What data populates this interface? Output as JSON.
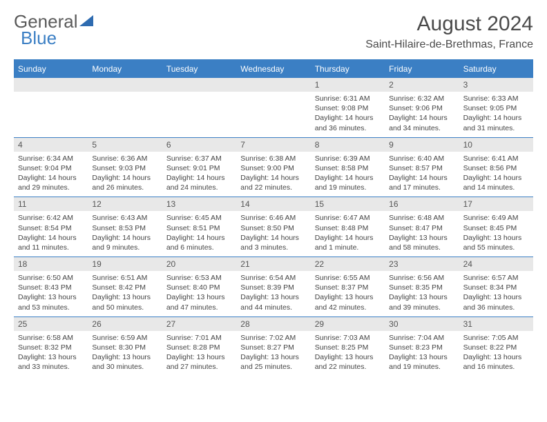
{
  "logo": {
    "text1": "General",
    "text2": "Blue"
  },
  "title": "August 2024",
  "location": "Saint-Hilaire-de-Brethmas, France",
  "colors": {
    "header_bg": "#3b7fc4",
    "header_text": "#ffffff",
    "daynum_bg": "#e8e8e8",
    "text": "#444444",
    "border": "#3b7fc4"
  },
  "day_headers": [
    "Sunday",
    "Monday",
    "Tuesday",
    "Wednesday",
    "Thursday",
    "Friday",
    "Saturday"
  ],
  "weeks": [
    [
      {
        "n": "",
        "sr": "",
        "ss": "",
        "dl": ""
      },
      {
        "n": "",
        "sr": "",
        "ss": "",
        "dl": ""
      },
      {
        "n": "",
        "sr": "",
        "ss": "",
        "dl": ""
      },
      {
        "n": "",
        "sr": "",
        "ss": "",
        "dl": ""
      },
      {
        "n": "1",
        "sr": "Sunrise: 6:31 AM",
        "ss": "Sunset: 9:08 PM",
        "dl": "Daylight: 14 hours and 36 minutes."
      },
      {
        "n": "2",
        "sr": "Sunrise: 6:32 AM",
        "ss": "Sunset: 9:06 PM",
        "dl": "Daylight: 14 hours and 34 minutes."
      },
      {
        "n": "3",
        "sr": "Sunrise: 6:33 AM",
        "ss": "Sunset: 9:05 PM",
        "dl": "Daylight: 14 hours and 31 minutes."
      }
    ],
    [
      {
        "n": "4",
        "sr": "Sunrise: 6:34 AM",
        "ss": "Sunset: 9:04 PM",
        "dl": "Daylight: 14 hours and 29 minutes."
      },
      {
        "n": "5",
        "sr": "Sunrise: 6:36 AM",
        "ss": "Sunset: 9:03 PM",
        "dl": "Daylight: 14 hours and 26 minutes."
      },
      {
        "n": "6",
        "sr": "Sunrise: 6:37 AM",
        "ss": "Sunset: 9:01 PM",
        "dl": "Daylight: 14 hours and 24 minutes."
      },
      {
        "n": "7",
        "sr": "Sunrise: 6:38 AM",
        "ss": "Sunset: 9:00 PM",
        "dl": "Daylight: 14 hours and 22 minutes."
      },
      {
        "n": "8",
        "sr": "Sunrise: 6:39 AM",
        "ss": "Sunset: 8:58 PM",
        "dl": "Daylight: 14 hours and 19 minutes."
      },
      {
        "n": "9",
        "sr": "Sunrise: 6:40 AM",
        "ss": "Sunset: 8:57 PM",
        "dl": "Daylight: 14 hours and 17 minutes."
      },
      {
        "n": "10",
        "sr": "Sunrise: 6:41 AM",
        "ss": "Sunset: 8:56 PM",
        "dl": "Daylight: 14 hours and 14 minutes."
      }
    ],
    [
      {
        "n": "11",
        "sr": "Sunrise: 6:42 AM",
        "ss": "Sunset: 8:54 PM",
        "dl": "Daylight: 14 hours and 11 minutes."
      },
      {
        "n": "12",
        "sr": "Sunrise: 6:43 AM",
        "ss": "Sunset: 8:53 PM",
        "dl": "Daylight: 14 hours and 9 minutes."
      },
      {
        "n": "13",
        "sr": "Sunrise: 6:45 AM",
        "ss": "Sunset: 8:51 PM",
        "dl": "Daylight: 14 hours and 6 minutes."
      },
      {
        "n": "14",
        "sr": "Sunrise: 6:46 AM",
        "ss": "Sunset: 8:50 PM",
        "dl": "Daylight: 14 hours and 3 minutes."
      },
      {
        "n": "15",
        "sr": "Sunrise: 6:47 AM",
        "ss": "Sunset: 8:48 PM",
        "dl": "Daylight: 14 hours and 1 minute."
      },
      {
        "n": "16",
        "sr": "Sunrise: 6:48 AM",
        "ss": "Sunset: 8:47 PM",
        "dl": "Daylight: 13 hours and 58 minutes."
      },
      {
        "n": "17",
        "sr": "Sunrise: 6:49 AM",
        "ss": "Sunset: 8:45 PM",
        "dl": "Daylight: 13 hours and 55 minutes."
      }
    ],
    [
      {
        "n": "18",
        "sr": "Sunrise: 6:50 AM",
        "ss": "Sunset: 8:43 PM",
        "dl": "Daylight: 13 hours and 53 minutes."
      },
      {
        "n": "19",
        "sr": "Sunrise: 6:51 AM",
        "ss": "Sunset: 8:42 PM",
        "dl": "Daylight: 13 hours and 50 minutes."
      },
      {
        "n": "20",
        "sr": "Sunrise: 6:53 AM",
        "ss": "Sunset: 8:40 PM",
        "dl": "Daylight: 13 hours and 47 minutes."
      },
      {
        "n": "21",
        "sr": "Sunrise: 6:54 AM",
        "ss": "Sunset: 8:39 PM",
        "dl": "Daylight: 13 hours and 44 minutes."
      },
      {
        "n": "22",
        "sr": "Sunrise: 6:55 AM",
        "ss": "Sunset: 8:37 PM",
        "dl": "Daylight: 13 hours and 42 minutes."
      },
      {
        "n": "23",
        "sr": "Sunrise: 6:56 AM",
        "ss": "Sunset: 8:35 PM",
        "dl": "Daylight: 13 hours and 39 minutes."
      },
      {
        "n": "24",
        "sr": "Sunrise: 6:57 AM",
        "ss": "Sunset: 8:34 PM",
        "dl": "Daylight: 13 hours and 36 minutes."
      }
    ],
    [
      {
        "n": "25",
        "sr": "Sunrise: 6:58 AM",
        "ss": "Sunset: 8:32 PM",
        "dl": "Daylight: 13 hours and 33 minutes."
      },
      {
        "n": "26",
        "sr": "Sunrise: 6:59 AM",
        "ss": "Sunset: 8:30 PM",
        "dl": "Daylight: 13 hours and 30 minutes."
      },
      {
        "n": "27",
        "sr": "Sunrise: 7:01 AM",
        "ss": "Sunset: 8:28 PM",
        "dl": "Daylight: 13 hours and 27 minutes."
      },
      {
        "n": "28",
        "sr": "Sunrise: 7:02 AM",
        "ss": "Sunset: 8:27 PM",
        "dl": "Daylight: 13 hours and 25 minutes."
      },
      {
        "n": "29",
        "sr": "Sunrise: 7:03 AM",
        "ss": "Sunset: 8:25 PM",
        "dl": "Daylight: 13 hours and 22 minutes."
      },
      {
        "n": "30",
        "sr": "Sunrise: 7:04 AM",
        "ss": "Sunset: 8:23 PM",
        "dl": "Daylight: 13 hours and 19 minutes."
      },
      {
        "n": "31",
        "sr": "Sunrise: 7:05 AM",
        "ss": "Sunset: 8:22 PM",
        "dl": "Daylight: 13 hours and 16 minutes."
      }
    ]
  ]
}
